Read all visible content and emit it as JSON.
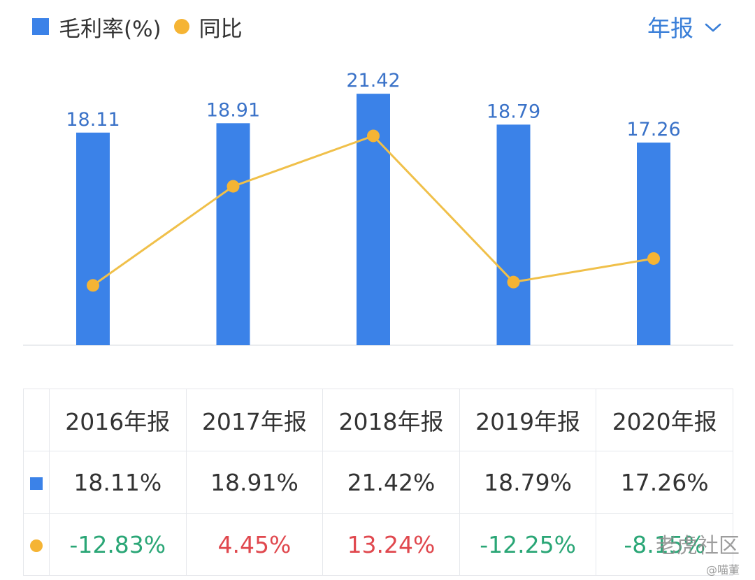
{
  "legend": {
    "series1_label": "毛利率(%)",
    "series2_label": "同比"
  },
  "period_selector": {
    "label": "年报"
  },
  "colors": {
    "bar": "#3b82e8",
    "line": "#f5b434",
    "negative": "#2aa676",
    "positive": "#e0484e"
  },
  "chart_data": {
    "type": "bar",
    "categories": [
      "2016年报",
      "2017年报",
      "2018年报",
      "2019年报",
      "2020年报"
    ],
    "series": [
      {
        "name": "毛利率(%)",
        "type": "bar",
        "values": [
          18.11,
          18.91,
          21.42,
          18.79,
          17.26
        ]
      },
      {
        "name": "同比",
        "type": "line",
        "values": [
          -12.83,
          4.45,
          13.24,
          -12.25,
          -8.15
        ]
      }
    ],
    "bar_labels": [
      "18.11",
      "18.91",
      "21.42",
      "18.79",
      "17.26"
    ],
    "legend_position": "top-left",
    "grid": false
  },
  "table": {
    "headers": [
      "2016年报",
      "2017年报",
      "2018年报",
      "2019年报",
      "2020年报"
    ],
    "row1": [
      "18.11%",
      "18.91%",
      "21.42%",
      "18.79%",
      "17.26%"
    ],
    "row2": [
      "-12.83%",
      "4.45%",
      "13.24%",
      "-12.25%",
      "-8.15%"
    ]
  },
  "watermark": {
    "line1": "老虎社区",
    "line2": "@喵董"
  }
}
